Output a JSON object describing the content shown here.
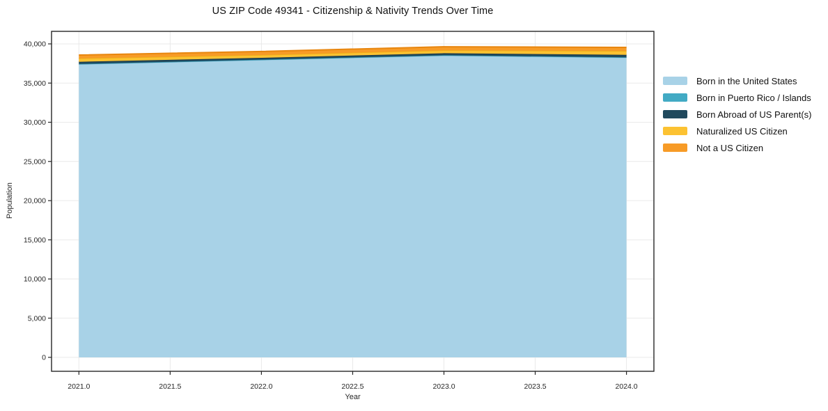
{
  "title": "US ZIP Code 49341 - Citizenship & Nativity Trends Over Time",
  "chart_data": {
    "type": "area",
    "stacked": true,
    "title": "US ZIP Code 49341 - Citizenship & Nativity Trends Over Time",
    "xlabel": "Year",
    "ylabel": "Population",
    "x": [
      2021,
      2022,
      2023,
      2024
    ],
    "series": [
      {
        "name": "Born in the United States",
        "color": "#a8d2e7",
        "edge": "#8fc3dc",
        "values": [
          37400,
          37950,
          38500,
          38250
        ]
      },
      {
        "name": "Born in Puerto Rico / Islands",
        "color": "#42aac4",
        "edge": "#2f93ad",
        "values": [
          40,
          40,
          50,
          45
        ]
      },
      {
        "name": "Born Abroad of US Parent(s)",
        "color": "#20495d",
        "edge": "#16374a",
        "values": [
          280,
          230,
          260,
          310
        ]
      },
      {
        "name": "Naturalized US Citizen",
        "color": "#fcc232",
        "edge": "#edb015",
        "values": [
          420,
          360,
          360,
          480
        ]
      },
      {
        "name": "Not a US Citizen",
        "color": "#f79b27",
        "edge": "#e8860f",
        "values": [
          440,
          450,
          470,
          470
        ]
      }
    ],
    "xticks": [
      2021.0,
      2021.5,
      2022.0,
      2022.5,
      2023.0,
      2023.5,
      2024.0
    ],
    "yticks": [
      0,
      5000,
      10000,
      15000,
      20000,
      25000,
      30000,
      35000,
      40000
    ],
    "xlim": [
      2021,
      2024
    ],
    "ylim": [
      0,
      40000
    ],
    "grid": true,
    "grid_color": "#e9e9e9",
    "frame_color": "#262626",
    "tick_label_color": "#262626",
    "legend_position": "right-outside"
  }
}
